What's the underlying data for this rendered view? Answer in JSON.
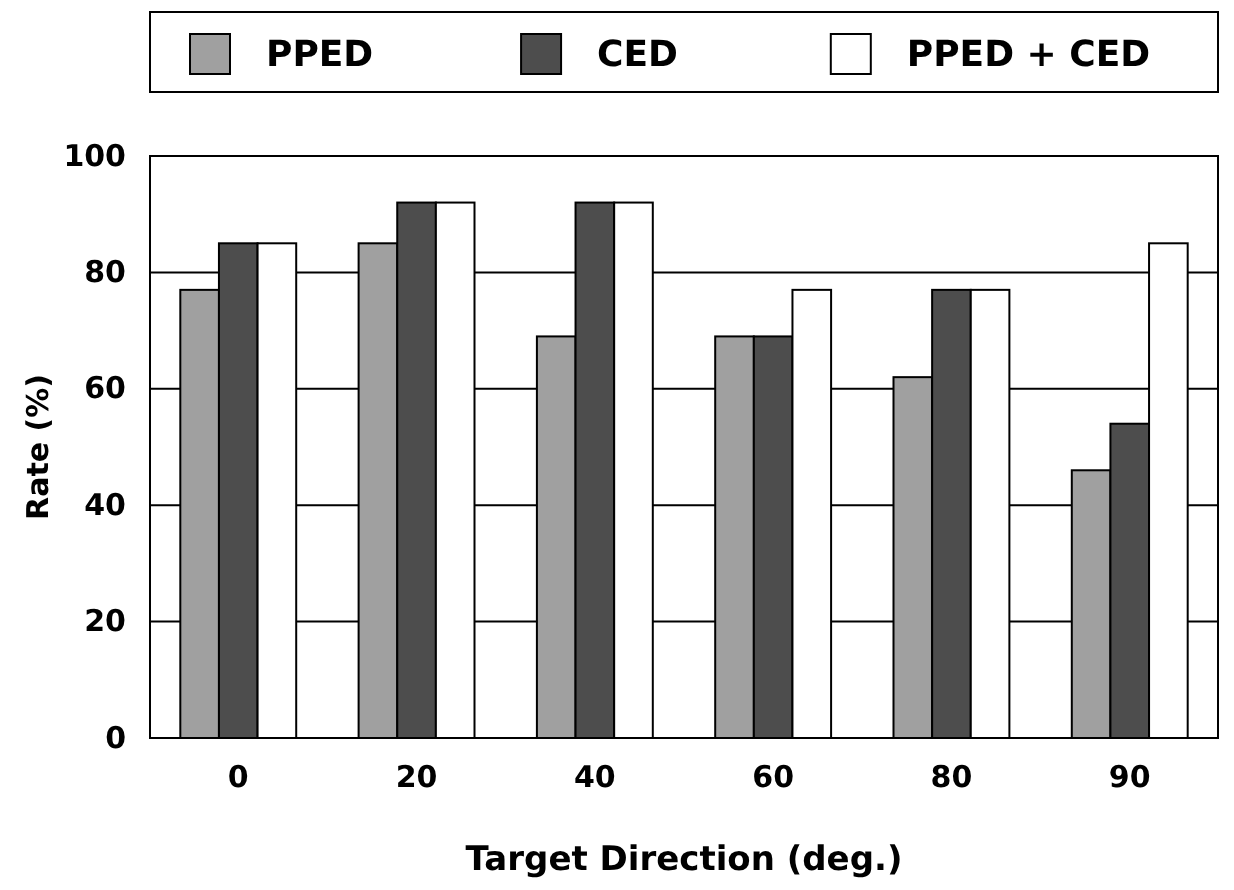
{
  "chart_data": {
    "type": "bar",
    "xlabel": "Target Direction (deg.)",
    "ylabel": "Rate (%)",
    "categories": [
      "0",
      "20",
      "40",
      "60",
      "80",
      "90"
    ],
    "series": [
      {
        "name": "PPED",
        "color": "#a0a0a0",
        "values": [
          77,
          85,
          69,
          69,
          62,
          46
        ]
      },
      {
        "name": "CED",
        "color": "#4d4d4d",
        "values": [
          85,
          92,
          92,
          69,
          77,
          54
        ]
      },
      {
        "name": "PPED + CED",
        "color": "#ffffff",
        "values": [
          85,
          92,
          92,
          77,
          77,
          85
        ]
      }
    ],
    "ylim": [
      0,
      100
    ],
    "yticks": [
      0,
      20,
      40,
      60,
      80,
      100
    ],
    "grid": "y",
    "legend": "top"
  }
}
